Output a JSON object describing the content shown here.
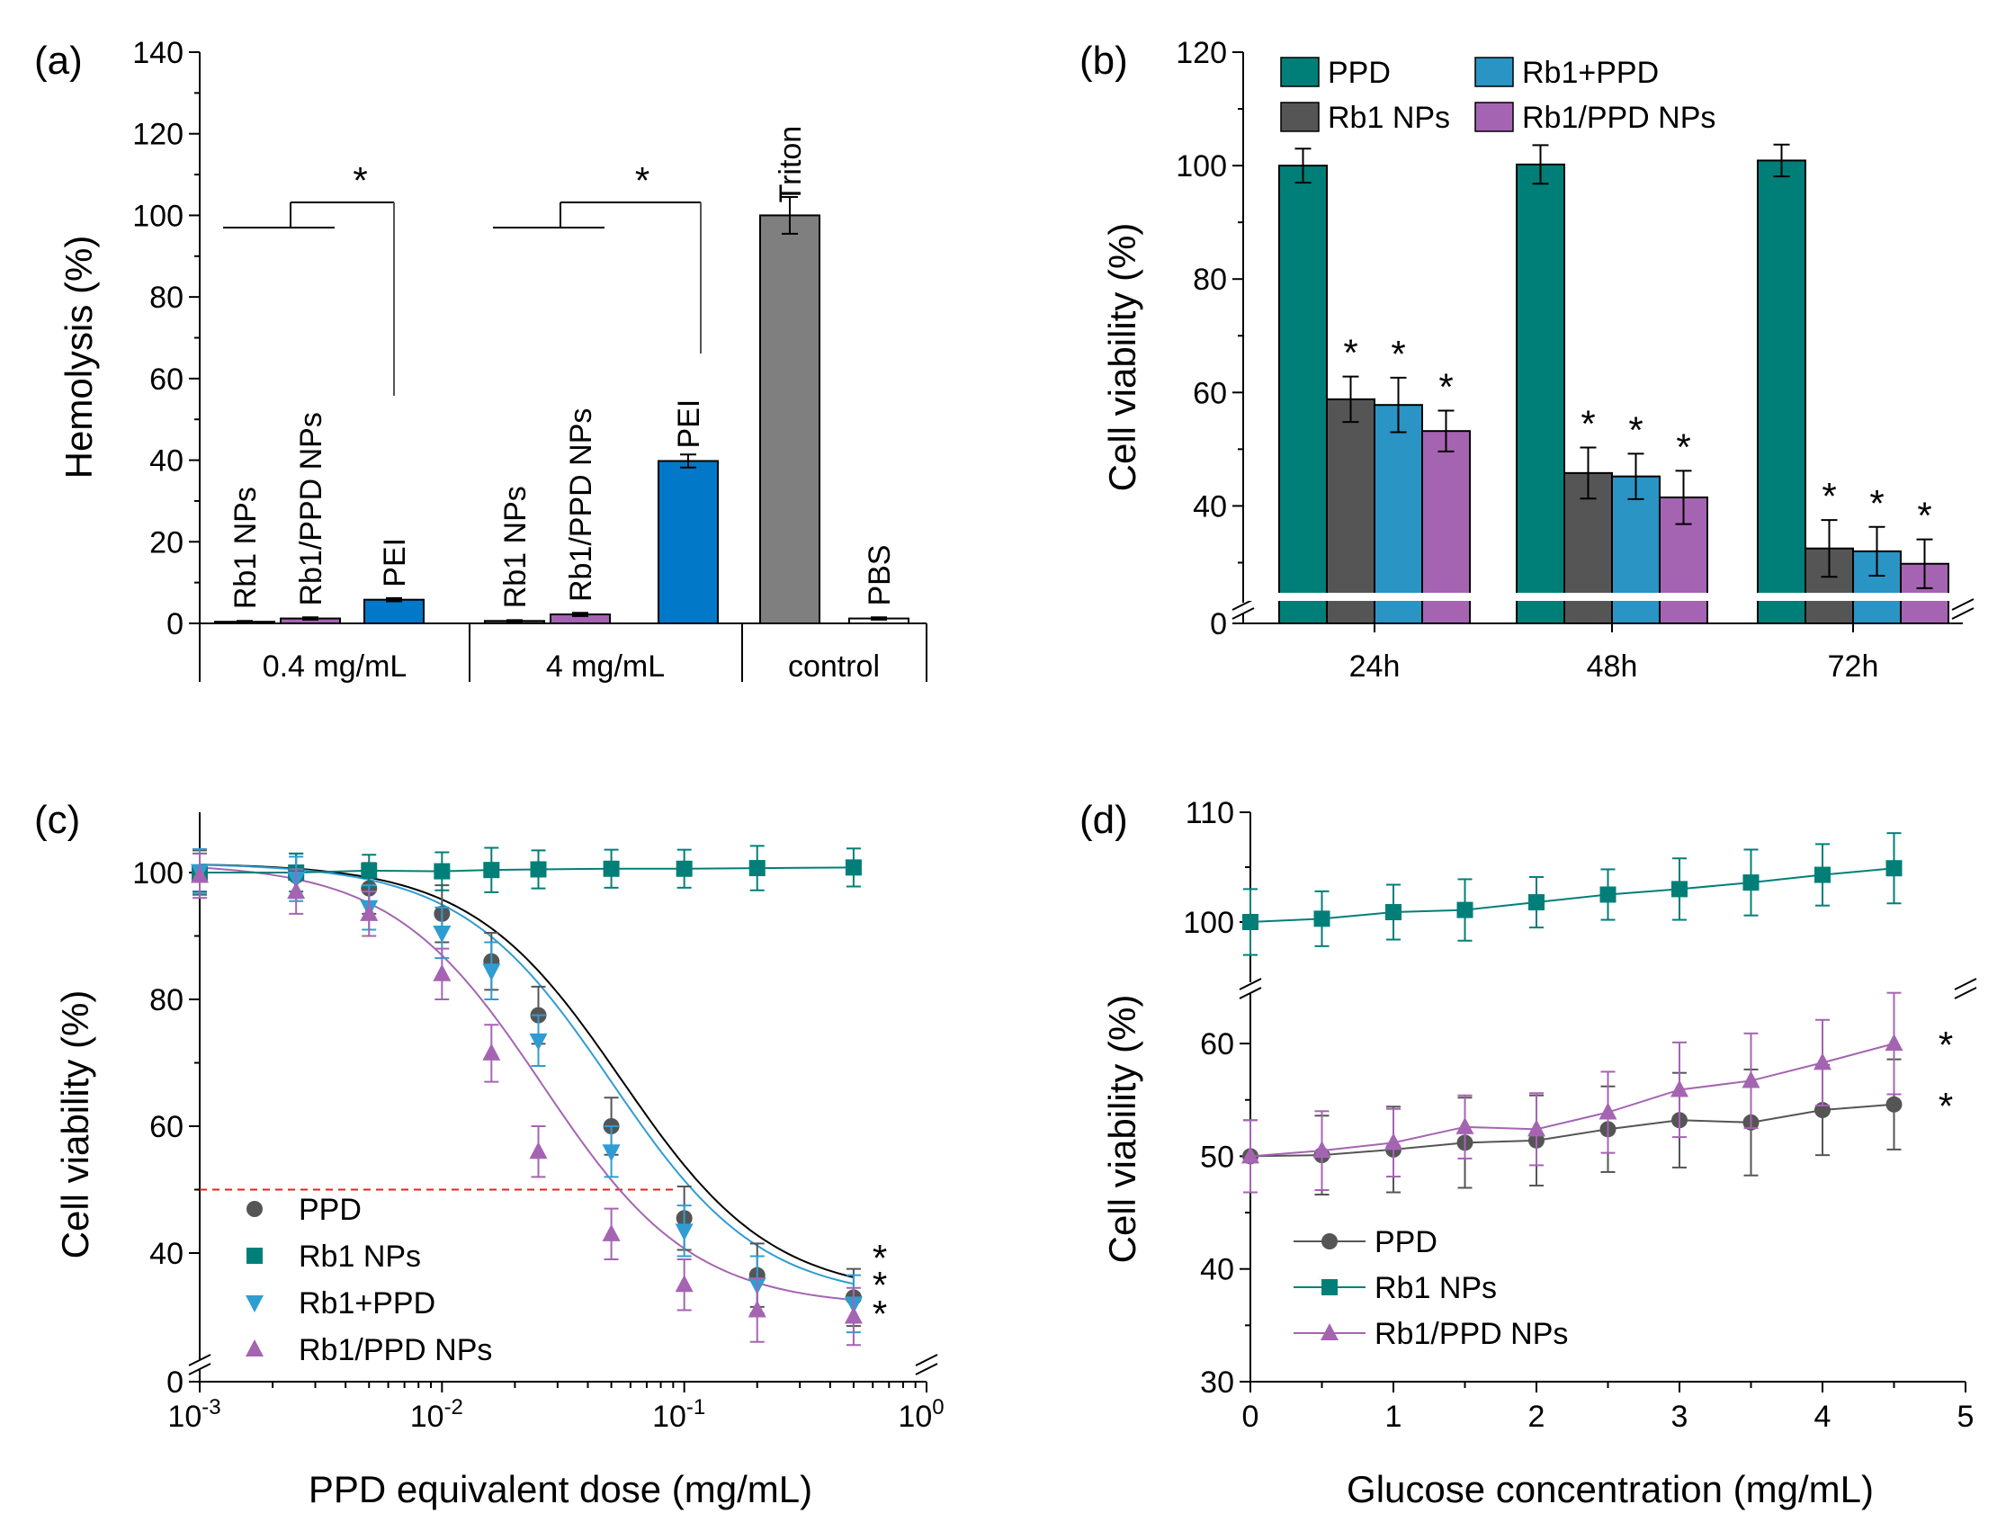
{
  "colors": {
    "teal": "#007f78",
    "dark_gray": "#555555",
    "blue_bar": "#0278c8",
    "light_blue": "#2a94c4",
    "purple": "#a564b2",
    "gray": "#7f7f7f",
    "black": "#000000",
    "cyan_tri": "#2f9dd2",
    "red_dash": "#e8201c"
  },
  "chart_data": [
    {
      "panel": "(a)",
      "type": "bar",
      "ylabel": "Hemolysis (%)",
      "ylim": [
        0,
        140
      ],
      "yticks": [
        "0",
        "20",
        "40",
        "60",
        "80",
        "100",
        "120",
        "140"
      ],
      "groups": [
        "0.4 mg/mL",
        "4 mg/mL",
        "control"
      ],
      "bars": [
        {
          "label": "Rb1 NPs",
          "group": "0.4 mg/mL",
          "value": 0.4,
          "error": 0.2,
          "color": "#555555"
        },
        {
          "label": "Rb1/PPD NPs",
          "group": "0.4 mg/mL",
          "value": 1.2,
          "error": 0.3,
          "color": "#a564b2"
        },
        {
          "label": "PEI",
          "group": "0.4 mg/mL",
          "value": 5.8,
          "error": 0.4,
          "color": "#0278c8"
        },
        {
          "label": "Rb1 NPs",
          "group": "4 mg/mL",
          "value": 0.6,
          "error": 0.2,
          "color": "#555555"
        },
        {
          "label": "Rb1/PPD NPs",
          "group": "4 mg/mL",
          "value": 2.2,
          "error": 0.4,
          "color": "#a564b2"
        },
        {
          "label": "PEI",
          "group": "4 mg/mL",
          "value": 39.8,
          "error": 1.6,
          "color": "#0278c8"
        },
        {
          "label": "Triton",
          "group": "control",
          "value": 100,
          "error": 4.5,
          "color": "#7f7f7f"
        },
        {
          "label": "PBS",
          "group": "control",
          "value": 1.2,
          "error": 0.3,
          "color": "#ffffff"
        }
      ],
      "annotations": [
        "*",
        "*"
      ]
    },
    {
      "panel": "(b)",
      "type": "bar",
      "ylabel": "Cell viability (%)",
      "ylim": [
        0,
        120
      ],
      "axis_break": [
        0,
        25
      ],
      "yticks": [
        "0",
        "40",
        "60",
        "80",
        "100",
        "120"
      ],
      "categories": [
        "24h",
        "48h",
        "72h"
      ],
      "series": [
        {
          "name": "PPD",
          "color": "#007f78",
          "values": [
            100,
            100.2,
            100.9
          ],
          "errors": [
            3,
            3.4,
            2.8
          ]
        },
        {
          "name": "Rb1 NPs",
          "color": "#555555",
          "values": [
            58.8,
            45.8,
            32.5
          ],
          "errors": [
            4,
            4.5,
            5
          ]
        },
        {
          "name": "Rb1+PPD",
          "color": "#2a94c4",
          "values": [
            57.8,
            45.2,
            32
          ],
          "errors": [
            4.8,
            4,
            4.3
          ]
        },
        {
          "name": "Rb1/PPD NPs",
          "color": "#a564b2",
          "values": [
            53.2,
            41.5,
            29.8
          ],
          "errors": [
            3.6,
            4.7,
            4.3
          ]
        }
      ],
      "star": "*"
    },
    {
      "panel": "(c)",
      "type": "line",
      "xscale": "log",
      "xlabel": "PPD equivalent dose (mg/mL)",
      "ylabel": "Cell viability (%)",
      "xlim": [
        0.001,
        1
      ],
      "ylim": [
        20,
        110
      ],
      "axis_break": [
        0,
        30
      ],
      "xticks": [
        {
          "base": "10",
          "exp": "-3"
        },
        {
          "base": "10",
          "exp": "-2"
        },
        {
          "base": "10",
          "exp": "-1"
        },
        {
          "base": "10",
          "exp": "0"
        }
      ],
      "yticks": [
        "0",
        "40",
        "60",
        "80",
        "100"
      ],
      "x": [
        0.001,
        0.0025,
        0.005,
        0.01,
        0.016,
        0.025,
        0.05,
        0.1,
        0.2,
        0.5
      ],
      "series": [
        {
          "name": "PPD",
          "color": "#555555",
          "marker": "circle",
          "values": [
            100,
            99.5,
            97.5,
            93.5,
            86,
            77.5,
            60,
            45.5,
            36.5,
            33
          ],
          "errors": [
            3.5,
            3.5,
            4,
            4.5,
            4.5,
            4.5,
            4.5,
            5,
            5,
            4.5
          ]
        },
        {
          "name": "Rb1 NPs",
          "color": "#007f78",
          "marker": "square",
          "values": [
            100,
            100,
            100.3,
            100.2,
            100.4,
            100.5,
            100.6,
            100.6,
            100.7,
            100.8
          ],
          "errors": [
            3,
            3,
            2.5,
            3,
            3.5,
            3,
            3,
            3,
            3.5,
            3
          ]
        },
        {
          "name": "Rb1+PPD",
          "color": "#2f9dd2",
          "marker": "triangle-down",
          "values": [
            100.2,
            99,
            94.5,
            90.5,
            84.5,
            73.5,
            56,
            43.5,
            35,
            32
          ],
          "errors": [
            3.5,
            3.5,
            3.5,
            4,
            4.5,
            4,
            4,
            4,
            4.5,
            4.5
          ]
        },
        {
          "name": "Rb1/PPD NPs",
          "color": "#a564b2",
          "marker": "triangle-up",
          "values": [
            99.5,
            97,
            93.5,
            84,
            71.5,
            56,
            43,
            35,
            31,
            30
          ],
          "errors": [
            3.5,
            3.5,
            3.5,
            4,
            4.5,
            4,
            4,
            4,
            5,
            4.5
          ]
        }
      ],
      "fits": [
        {
          "series": "PPD",
          "top": 101.5,
          "bottom": 33.2,
          "ec50": 0.055,
          "hill": 1.4
        },
        {
          "series": "Rb1+PPD",
          "top": 101.5,
          "bottom": 32.5,
          "ec50": 0.05,
          "hill": 1.4
        },
        {
          "series": "Rb1/PPD NPs",
          "top": 101.5,
          "bottom": 31.5,
          "ec50": 0.026,
          "hill": 1.4
        }
      ],
      "reference_line": {
        "y": 50,
        "x_max": 0.09
      },
      "stars": [
        "*",
        "*",
        "*"
      ]
    },
    {
      "panel": "(d)",
      "type": "line",
      "xlabel": "Glucose concentration (mg/mL)",
      "ylabel": "Cell viability (%)",
      "xlim": [
        0,
        5
      ],
      "axis_break": [
        65,
        97
      ],
      "xticks": [
        "0",
        "1",
        "2",
        "3",
        "4",
        "5"
      ],
      "yticks": [
        "30",
        "40",
        "50",
        "60",
        "100",
        "110"
      ],
      "x": [
        0,
        0.5,
        1,
        1.5,
        2,
        2.5,
        3,
        3.5,
        4,
        4.5
      ],
      "series": [
        {
          "name": "PPD",
          "color": "#555555",
          "marker": "circle",
          "values": [
            50,
            50.1,
            50.6,
            51.2,
            51.4,
            52.4,
            53.2,
            53,
            54.1,
            54.6
          ],
          "errors": [
            3.2,
            3.5,
            3.8,
            4,
            4,
            3.8,
            4.2,
            4.7,
            4,
            4
          ]
        },
        {
          "name": "Rb1 NPs",
          "color": "#007f78",
          "marker": "square",
          "values": [
            100,
            100.3,
            100.9,
            101.1,
            101.8,
            102.5,
            103,
            103.6,
            104.3,
            104.9
          ],
          "errors": [
            3,
            2.5,
            2.5,
            2.8,
            2.3,
            2.3,
            2.8,
            3,
            2.8,
            3.2
          ]
        },
        {
          "name": "Rb1/PPD NPs",
          "color": "#a564b2",
          "marker": "triangle-up",
          "values": [
            50,
            50.5,
            51.2,
            52.6,
            52.4,
            53.9,
            55.9,
            56.7,
            58.3,
            60
          ],
          "errors": [
            3.2,
            3.5,
            3,
            2.8,
            3.2,
            3.6,
            4.2,
            4.2,
            3.8,
            4.5
          ]
        }
      ],
      "stars": [
        "*",
        "*"
      ]
    }
  ]
}
